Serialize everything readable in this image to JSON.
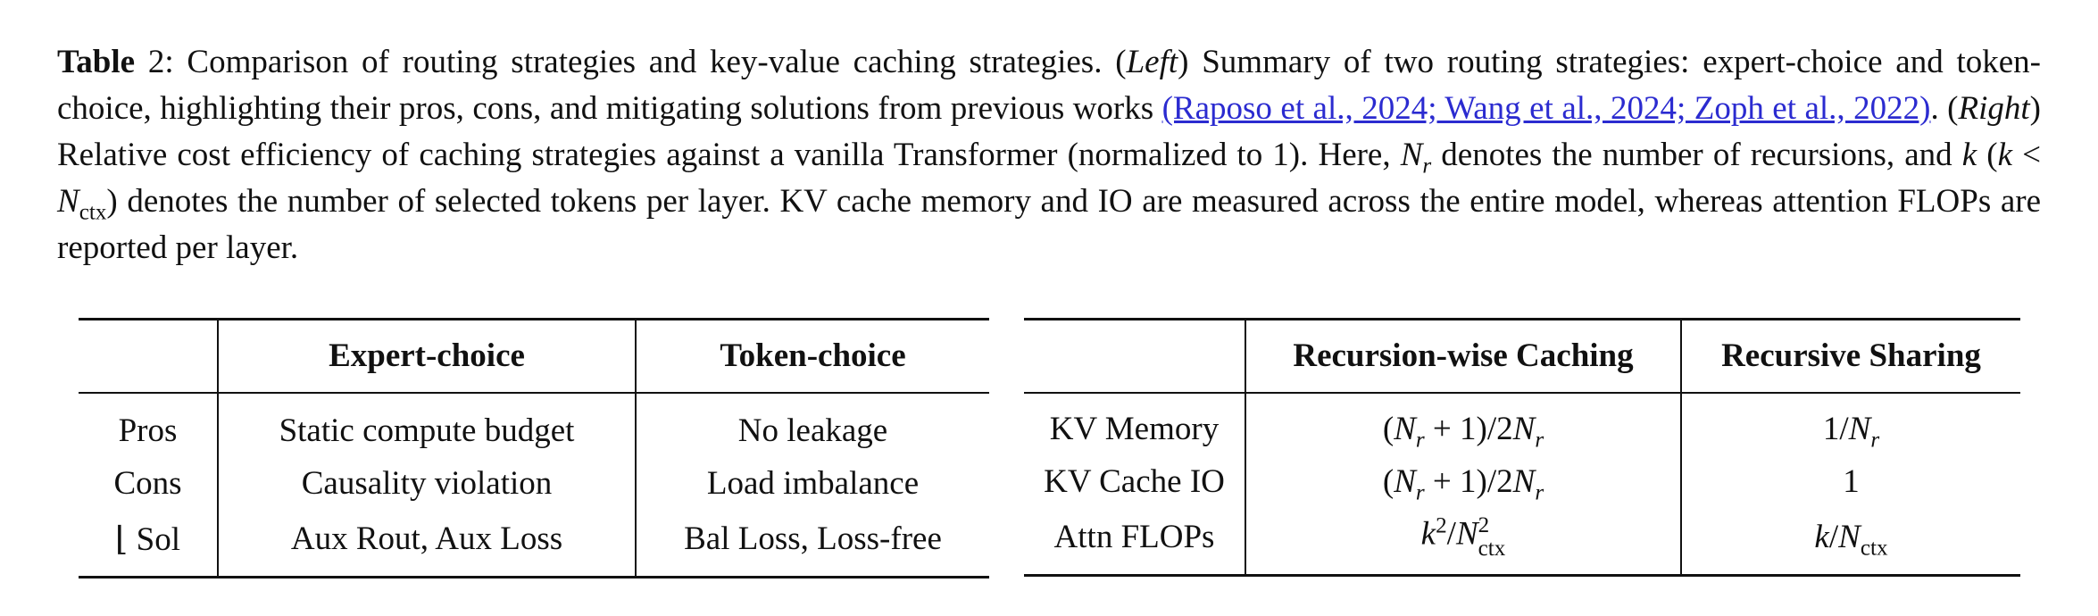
{
  "caption": {
    "label": "Table",
    "number": "2",
    "text_1": ": Comparison of routing strategies and key-value caching strategies. (",
    "left_word": "Left",
    "text_2": ") Summary of two routing strategies: expert-choice and token-choice, highlighting their pros, cons, and mitigating solutions from previous works ",
    "citations": "(Raposo et al., 2024; Wang et al., 2024; Zoph et al., 2022)",
    "text_3": ". (",
    "right_word": "Right",
    "text_4": ") Relative cost efficiency of caching strategies against a vanilla Transformer (normalized to 1). Here, ",
    "text_5": " denotes the number of recursions, and ",
    "text_6": " denotes the number of selected tokens per layer. KV cache memory and IO are measured across the entire model, whereas attention FLOPs are reported per layer."
  },
  "left_table": {
    "headers": [
      "",
      "Expert-choice",
      "Token-choice"
    ],
    "rows": [
      {
        "label": "Pros",
        "expert": "Static compute budget",
        "token": "No leakage"
      },
      {
        "label": "Cons",
        "expert": "Causality violation",
        "token": "Load imbalance"
      },
      {
        "label": "⌊ Sol",
        "expert": "Aux Rout, Aux Loss",
        "token": "Bal Loss, Loss-free"
      }
    ]
  },
  "right_table": {
    "headers": [
      "",
      "Recursion-wise Caching",
      "Recursive Sharing"
    ],
    "rows": [
      {
        "label": "KV Memory",
        "caching": "(Nr + 1)/2Nr",
        "sharing": "1/Nr"
      },
      {
        "label": "KV Cache IO",
        "caching": "(Nr + 1)/2Nr",
        "sharing": "1"
      },
      {
        "label": "Attn FLOPs",
        "caching": "k²/N²ctx",
        "sharing": "k/Nctx"
      }
    ]
  }
}
